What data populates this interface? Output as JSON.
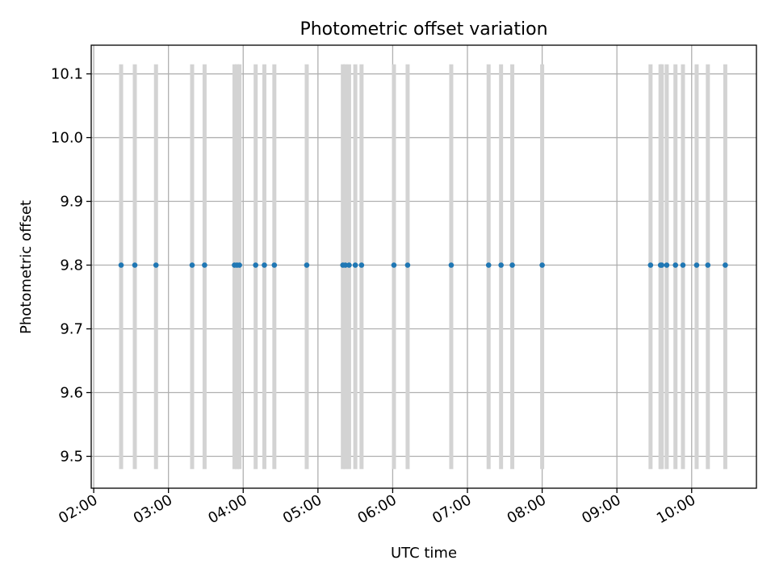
{
  "chart_data": {
    "type": "scatter",
    "title": "Photometric offset variation",
    "xlabel": "UTC time",
    "ylabel": "Photometric offset",
    "x_axis": "time",
    "xlim": [
      "01:58",
      "10:52"
    ],
    "ylim": [
      9.45,
      10.145
    ],
    "grid": true,
    "legend": "none",
    "x_ticks": [
      "02:00",
      "03:00",
      "04:00",
      "05:00",
      "06:00",
      "07:00",
      "08:00",
      "09:00",
      "10:00"
    ],
    "y_ticks": [
      9.5,
      9.6,
      9.7,
      9.8,
      9.9,
      10.0,
      10.1
    ],
    "y_tick_labels": [
      "9.5",
      "9.6",
      "9.7",
      "9.8",
      "9.9",
      "10.0",
      "10.1"
    ],
    "error_band": {
      "low": 9.48,
      "high": 10.115,
      "color": "#d3d3d3"
    },
    "series": [
      {
        "color": "#1f77b4",
        "x": [
          "02:22",
          "02:33",
          "02:50",
          "03:19",
          "03:29",
          "03:53",
          "03:55",
          "03:57",
          "04:10",
          "04:17",
          "04:25",
          "04:51",
          "05:20",
          "05:22",
          "05:25",
          "05:30",
          "05:35",
          "06:01",
          "06:12",
          "06:47",
          "07:17",
          "07:27",
          "07:36",
          "08:00",
          "09:27",
          "09:35",
          "09:36",
          "09:40",
          "09:47",
          "09:53",
          "10:04",
          "10:13",
          "10:27"
        ],
        "y": [
          9.8,
          9.8,
          9.8,
          9.8,
          9.8,
          9.8,
          9.8,
          9.8,
          9.8,
          9.8,
          9.8,
          9.8,
          9.8,
          9.8,
          9.8,
          9.8,
          9.8,
          9.8,
          9.8,
          9.8,
          9.8,
          9.8,
          9.8,
          9.8,
          9.8,
          9.8,
          9.8,
          9.8,
          9.8,
          9.8,
          9.8,
          9.8,
          9.8
        ]
      }
    ]
  }
}
